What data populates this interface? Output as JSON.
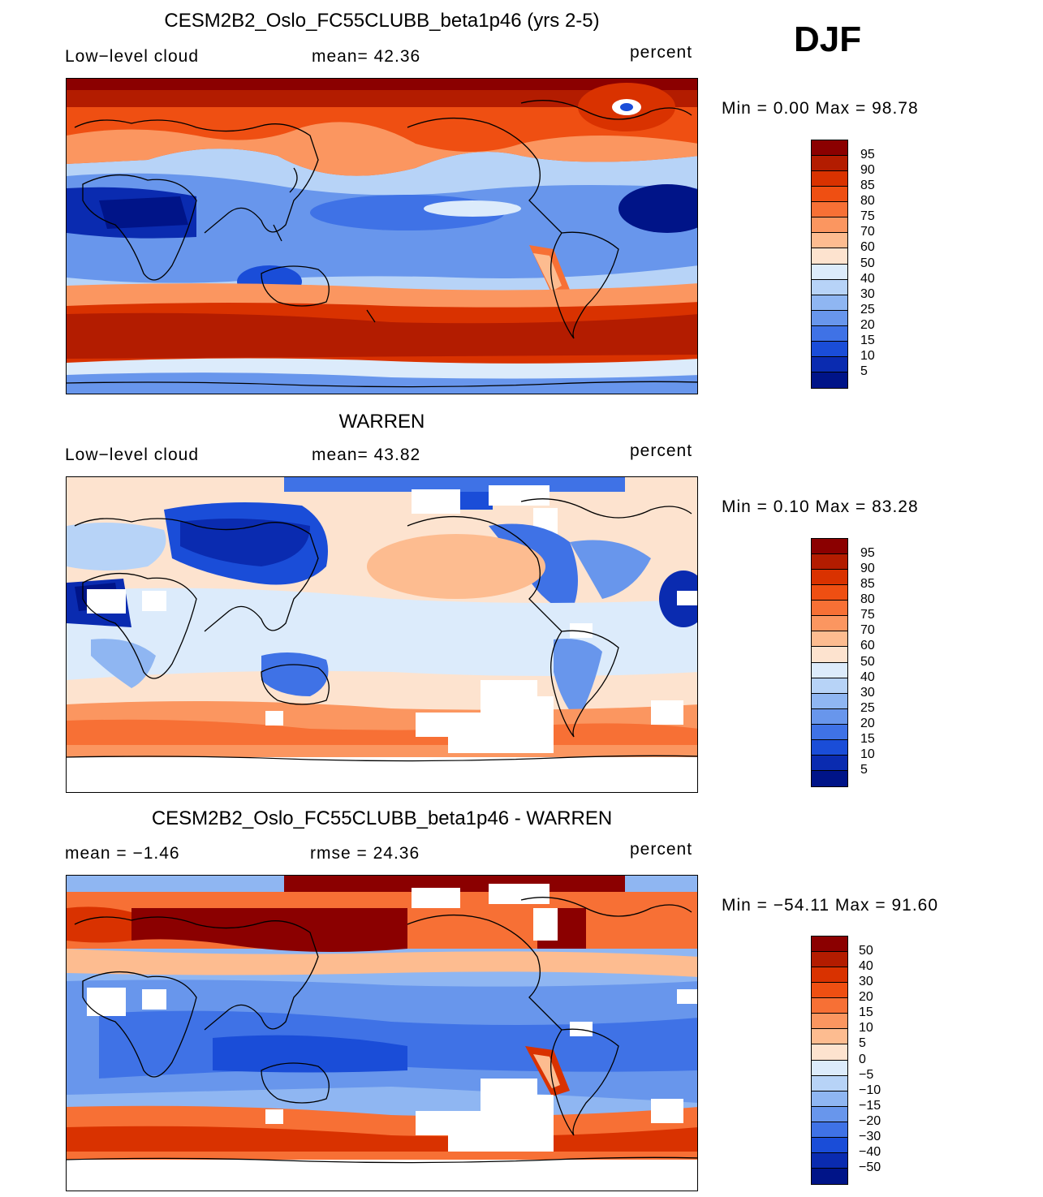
{
  "season": "DJF",
  "units": "percent",
  "panels": [
    {
      "title": "CESM2B2_Oslo_FC55CLUBB_beta1p46 (yrs 2-5)",
      "left_text": "Low−level cloud",
      "mid_text": "mean=   42.36",
      "right_text": "percent",
      "minmax": "Min =    0.00 Max =   98.78"
    },
    {
      "title": "WARREN",
      "left_text": "Low−level cloud",
      "mid_text": "mean=   43.82",
      "right_text": "percent",
      "minmax": "Min =    0.10 Max =   83.28"
    },
    {
      "title": "CESM2B2_Oslo_FC55CLUBB_beta1p46 - WARREN",
      "left_text": "mean =   −1.46",
      "mid_text": "rmse =   24.36",
      "right_text": "percent",
      "minmax": "Min = −54.11 Max =   91.60"
    }
  ],
  "colorbars": {
    "abs": {
      "labels": [
        "95",
        "90",
        "85",
        "80",
        "75",
        "70",
        "60",
        "50",
        "40",
        "30",
        "25",
        "20",
        "15",
        "10",
        "5"
      ],
      "colors": [
        "#8b0000",
        "#b31c00",
        "#d93200",
        "#ef4f12",
        "#f77035",
        "#fb9660",
        "#fdbc90",
        "#fde3cf",
        "#dcebfb",
        "#b7d3f7",
        "#8fb6f2",
        "#6896ec",
        "#3f72e6",
        "#1a4dd8",
        "#0a2bb0",
        "#001488"
      ]
    },
    "diff": {
      "labels": [
        "50",
        "40",
        "30",
        "20",
        "15",
        "10",
        "5",
        "0",
        "−5",
        "−10",
        "−15",
        "−20",
        "−30",
        "−40",
        "−50"
      ],
      "colors": [
        "#8b0000",
        "#b31c00",
        "#d93200",
        "#ef4f12",
        "#f77035",
        "#fb9660",
        "#fdbc90",
        "#fde3cf",
        "#dcebfb",
        "#b7d3f7",
        "#8fb6f2",
        "#6896ec",
        "#3f72e6",
        "#1a4dd8",
        "#0a2bb0",
        "#001488"
      ]
    }
  },
  "colors": {
    "dark_red": "#8b0000",
    "red": "#d93200",
    "orange": "#f77035",
    "light_orange": "#fdbc90",
    "pale": "#fde3cf",
    "pale_blue": "#dcebfb",
    "light_blue": "#b7d3f7",
    "mid_blue": "#6896ec",
    "blue": "#1a4dd8",
    "navy": "#001488",
    "white": "#ffffff"
  }
}
